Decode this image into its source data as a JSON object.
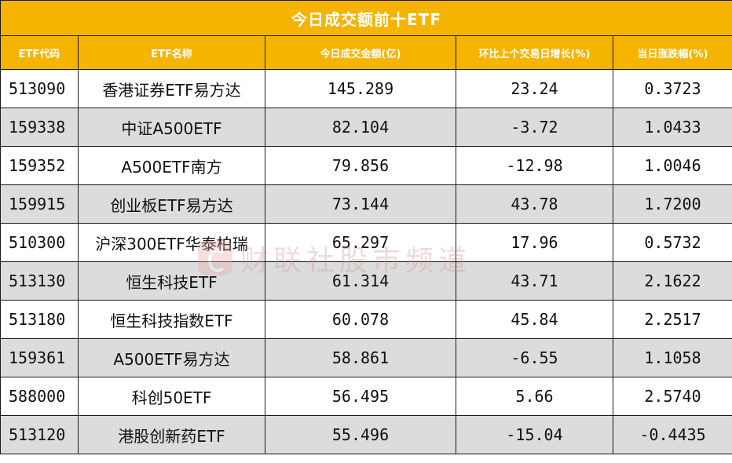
{
  "table": {
    "title": "今日成交额前十ETF",
    "headers": [
      "ETF代码",
      "ETF名称",
      "今日成交金额(亿)",
      "环比上个交易日增长(%)",
      "当日涨跌幅(%)"
    ],
    "rows": [
      {
        "code": "513090",
        "name": "香港证券ETF易方达",
        "turnover": "145.289",
        "growth": "23.24",
        "change": "0.3723"
      },
      {
        "code": "159338",
        "name": "中证A500ETF",
        "turnover": "82.104",
        "growth": "-3.72",
        "change": "1.0433"
      },
      {
        "code": "159352",
        "name": "A500ETF南方",
        "turnover": "79.856",
        "growth": "-12.98",
        "change": "1.0046"
      },
      {
        "code": "159915",
        "name": "创业板ETF易方达",
        "turnover": "73.144",
        "growth": "43.78",
        "change": "1.7200"
      },
      {
        "code": "510300",
        "name": "沪深300ETF华泰柏瑞",
        "turnover": "65.297",
        "growth": "17.96",
        "change": "0.5732"
      },
      {
        "code": "513130",
        "name": "恒生科技ETF",
        "turnover": "61.314",
        "growth": "43.71",
        "change": "2.1622"
      },
      {
        "code": "513180",
        "name": "恒生科技指数ETF",
        "turnover": "60.078",
        "growth": "45.84",
        "change": "2.2517"
      },
      {
        "code": "159361",
        "name": "A500ETF易方达",
        "turnover": "58.861",
        "growth": "-6.55",
        "change": "1.1058"
      },
      {
        "code": "588000",
        "name": "科创50ETF",
        "turnover": "56.495",
        "growth": "5.66",
        "change": "2.5740"
      },
      {
        "code": "513120",
        "name": "港股创新药ETF",
        "turnover": "55.496",
        "growth": "-15.04",
        "change": "-0.4435"
      }
    ]
  },
  "watermark": {
    "text": "财联社股市频道",
    "icon": "cls-logo-icon"
  },
  "colors": {
    "header_bg": "#f6b400",
    "header_text": "#ffffff",
    "stripe": "#dcdcdc",
    "border": "#1a1a1a"
  }
}
